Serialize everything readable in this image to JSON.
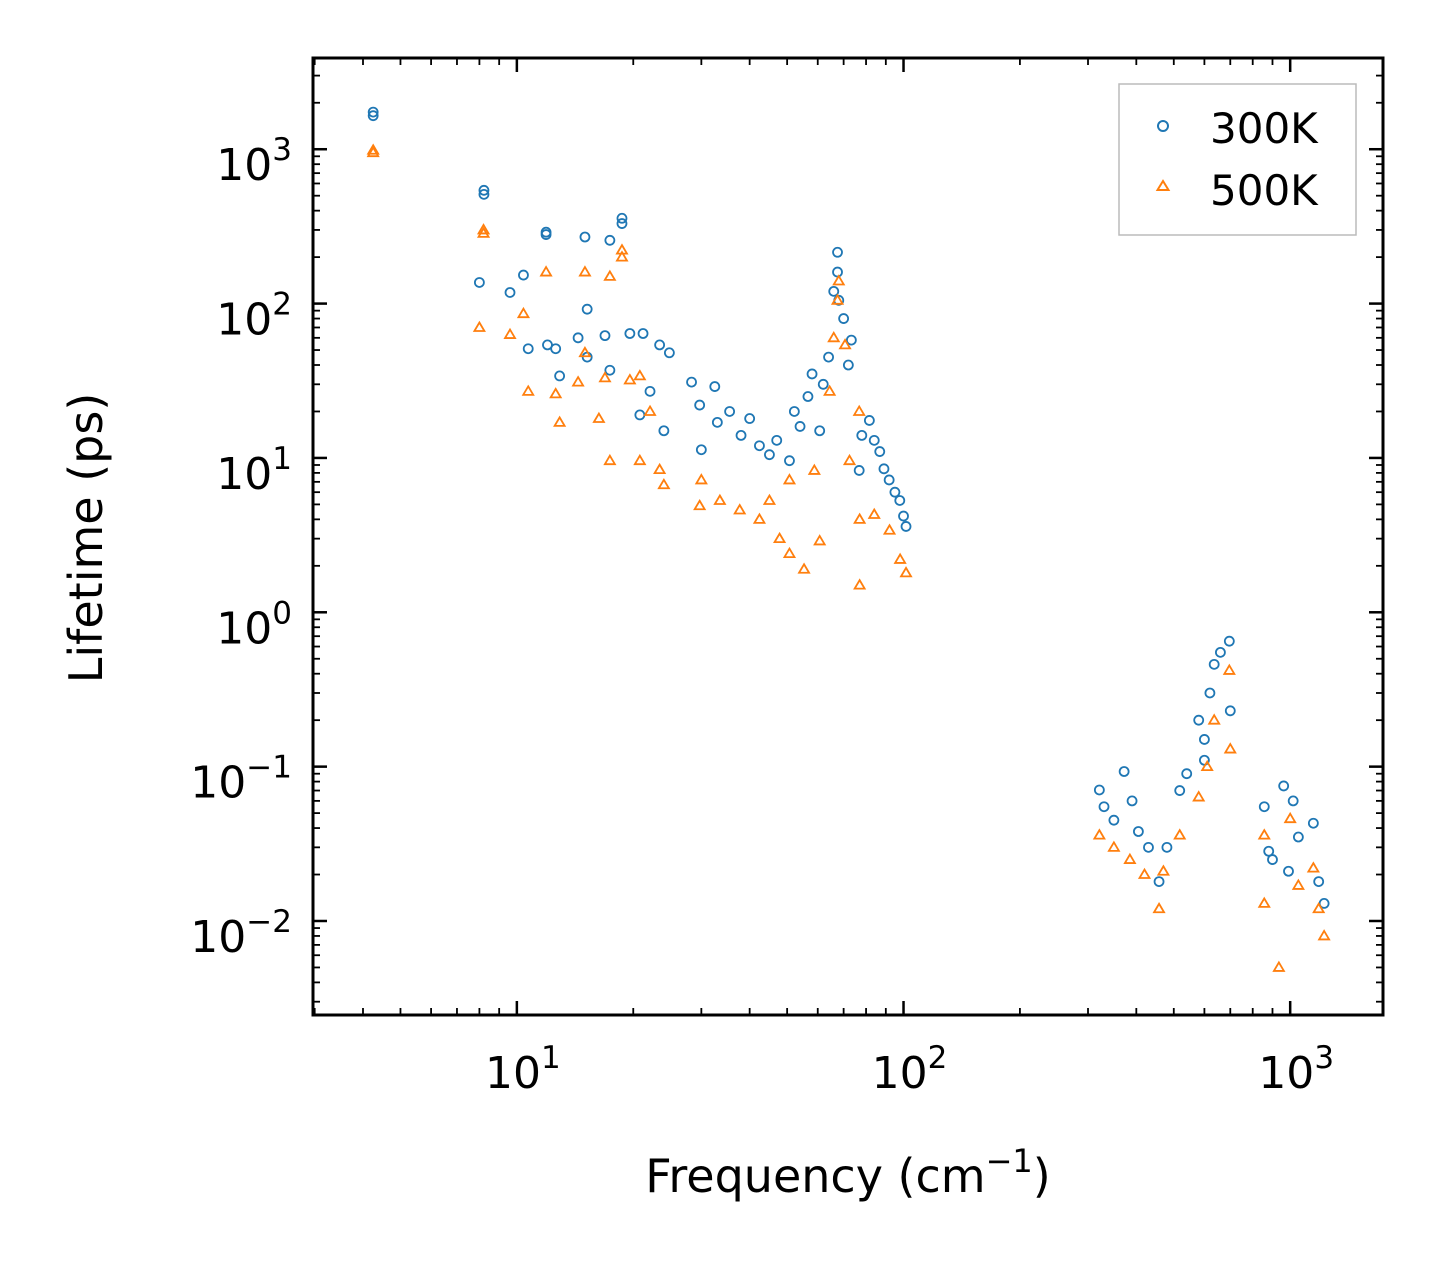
{
  "chart_data": {
    "type": "scatter",
    "xlabel": "Frequency (cm",
    "xlabel_sup": "−1",
    "xlabel_end": ")",
    "ylabel": "Lifetime (ps)",
    "xscale": "log",
    "yscale": "log",
    "xlim": [
      2.97,
      1738
    ],
    "ylim": [
      0.00246,
      3900
    ],
    "xticks": [
      {
        "value": 10,
        "base": "10",
        "exp": "1"
      },
      {
        "value": 100,
        "base": "10",
        "exp": "2"
      },
      {
        "value": 1000,
        "base": "10",
        "exp": "3"
      }
    ],
    "yticks": [
      {
        "value": 1000,
        "base": "10",
        "exp": "3"
      },
      {
        "value": 100,
        "base": "10",
        "exp": "2"
      },
      {
        "value": 10,
        "base": "10",
        "exp": "1"
      },
      {
        "value": 1,
        "base": "10",
        "exp": "0"
      },
      {
        "value": 0.1,
        "base": "10",
        "exp": "−1"
      },
      {
        "value": 0.01,
        "base": "10",
        "exp": "−2"
      }
    ],
    "legend_position": "top-right",
    "series": [
      {
        "name": "300K",
        "marker": "circle",
        "color": "#1f77b4",
        "points": [
          [
            4.25,
            1740
          ],
          [
            4.25,
            1650
          ],
          [
            8.22,
            542
          ],
          [
            8.22,
            510
          ],
          [
            8.0,
            137
          ],
          [
            9.6,
            118
          ],
          [
            10.4,
            153
          ],
          [
            10.7,
            51
          ],
          [
            11.9,
            290
          ],
          [
            11.9,
            280
          ],
          [
            12.0,
            54
          ],
          [
            12.6,
            51
          ],
          [
            12.9,
            34
          ],
          [
            14.4,
            60
          ],
          [
            15.0,
            270
          ],
          [
            15.2,
            92
          ],
          [
            15.2,
            45
          ],
          [
            17.4,
            257
          ],
          [
            18.7,
            357
          ],
          [
            18.7,
            330
          ],
          [
            16.9,
            62
          ],
          [
            19.6,
            64
          ],
          [
            21.2,
            64
          ],
          [
            17.4,
            37
          ],
          [
            23.4,
            54
          ],
          [
            24.8,
            48
          ],
          [
            22.1,
            27
          ],
          [
            28.3,
            31
          ],
          [
            29.7,
            22
          ],
          [
            32.5,
            29
          ],
          [
            35.5,
            20
          ],
          [
            40,
            18
          ],
          [
            20.8,
            19
          ],
          [
            24,
            15
          ],
          [
            30,
            11.3
          ],
          [
            33,
            17
          ],
          [
            38,
            14
          ],
          [
            42.4,
            12
          ],
          [
            45,
            10.5
          ],
          [
            47,
            13
          ],
          [
            50.7,
            9.6
          ],
          [
            52.2,
            20
          ],
          [
            54,
            16
          ],
          [
            56.6,
            25
          ],
          [
            58,
            35
          ],
          [
            60.7,
            15
          ],
          [
            62,
            30
          ],
          [
            64,
            45
          ],
          [
            66,
            120
          ],
          [
            67.5,
            215
          ],
          [
            67.5,
            160
          ],
          [
            68,
            105
          ],
          [
            70,
            80
          ],
          [
            73.3,
            58
          ],
          [
            72,
            40
          ],
          [
            76.8,
            8.3
          ],
          [
            78,
            14
          ],
          [
            81.6,
            17.5
          ],
          [
            84,
            13
          ],
          [
            86.8,
            11
          ],
          [
            89,
            8.5
          ],
          [
            91.8,
            7.2
          ],
          [
            95,
            6
          ],
          [
            97.8,
            5.3
          ],
          [
            100,
            4.2
          ],
          [
            101.5,
            3.6
          ],
          [
            321,
            0.0706
          ],
          [
            330,
            0.055
          ],
          [
            350,
            0.045
          ],
          [
            372,
            0.093
          ],
          [
            390,
            0.06
          ],
          [
            405,
            0.038
          ],
          [
            430,
            0.03
          ],
          [
            458,
            0.018
          ],
          [
            480,
            0.03
          ],
          [
            518,
            0.07
          ],
          [
            540,
            0.09
          ],
          [
            580,
            0.2
          ],
          [
            600,
            0.15
          ],
          [
            620,
            0.3
          ],
          [
            636,
            0.46
          ],
          [
            660,
            0.55
          ],
          [
            696,
            0.65
          ],
          [
            700,
            0.23
          ],
          [
            600,
            0.11
          ],
          [
            857,
            0.055
          ],
          [
            880,
            0.0283
          ],
          [
            900,
            0.025
          ],
          [
            962,
            0.075
          ],
          [
            1018,
            0.06
          ],
          [
            990,
            0.021
          ],
          [
            1050,
            0.035
          ],
          [
            1148,
            0.043
          ],
          [
            1185,
            0.018
          ],
          [
            1224,
            0.013
          ]
        ]
      },
      {
        "name": "500K",
        "marker": "triangle",
        "color": "#ff7f0e",
        "points": [
          [
            4.25,
            985
          ],
          [
            4.25,
            950
          ],
          [
            8.2,
            300
          ],
          [
            8.2,
            285
          ],
          [
            8.0,
            70
          ],
          [
            9.6,
            63
          ],
          [
            10.4,
            86
          ],
          [
            10.7,
            27
          ],
          [
            11.9,
            160
          ],
          [
            12.6,
            26
          ],
          [
            12.9,
            17
          ],
          [
            14.4,
            31
          ],
          [
            15,
            160
          ],
          [
            15,
            48
          ],
          [
            16.3,
            18
          ],
          [
            17.4,
            150
          ],
          [
            18.7,
            222
          ],
          [
            18.7,
            200
          ],
          [
            16.9,
            33
          ],
          [
            17.4,
            9.6
          ],
          [
            19.6,
            32
          ],
          [
            20.8,
            34
          ],
          [
            20.8,
            9.6
          ],
          [
            22.1,
            20
          ],
          [
            23.4,
            8.4
          ],
          [
            24,
            6.7
          ],
          [
            30,
            7.2
          ],
          [
            29.7,
            4.9
          ],
          [
            33.5,
            5.3
          ],
          [
            37.7,
            4.6
          ],
          [
            42.4,
            4
          ],
          [
            45,
            5.3
          ],
          [
            47.8,
            3.0
          ],
          [
            50.7,
            7.2
          ],
          [
            50.7,
            2.4
          ],
          [
            55.3,
            1.9
          ],
          [
            58.8,
            8.3
          ],
          [
            60.7,
            2.9
          ],
          [
            64.4,
            27
          ],
          [
            66,
            60
          ],
          [
            67.5,
            105
          ],
          [
            68,
            140
          ],
          [
            70.6,
            54
          ],
          [
            72.5,
            9.6
          ],
          [
            76.8,
            20
          ],
          [
            77,
            4
          ],
          [
            77,
            1.5
          ],
          [
            84,
            4.3
          ],
          [
            92,
            3.4
          ],
          [
            98,
            2.2
          ],
          [
            101.5,
            1.8
          ],
          [
            321,
            0.036
          ],
          [
            350,
            0.03
          ],
          [
            385,
            0.025
          ],
          [
            420,
            0.02
          ],
          [
            458,
            0.012
          ],
          [
            470,
            0.021
          ],
          [
            518,
            0.036
          ],
          [
            580,
            0.0635
          ],
          [
            610,
            0.1
          ],
          [
            636,
            0.2
          ],
          [
            696,
            0.42
          ],
          [
            700,
            0.13
          ],
          [
            857,
            0.036
          ],
          [
            857,
            0.013
          ],
          [
            935,
            0.005
          ],
          [
            1000,
            0.046
          ],
          [
            1050,
            0.017
          ],
          [
            1148,
            0.022
          ],
          [
            1224,
            0.008
          ],
          [
            1185,
            0.012
          ]
        ]
      }
    ]
  }
}
